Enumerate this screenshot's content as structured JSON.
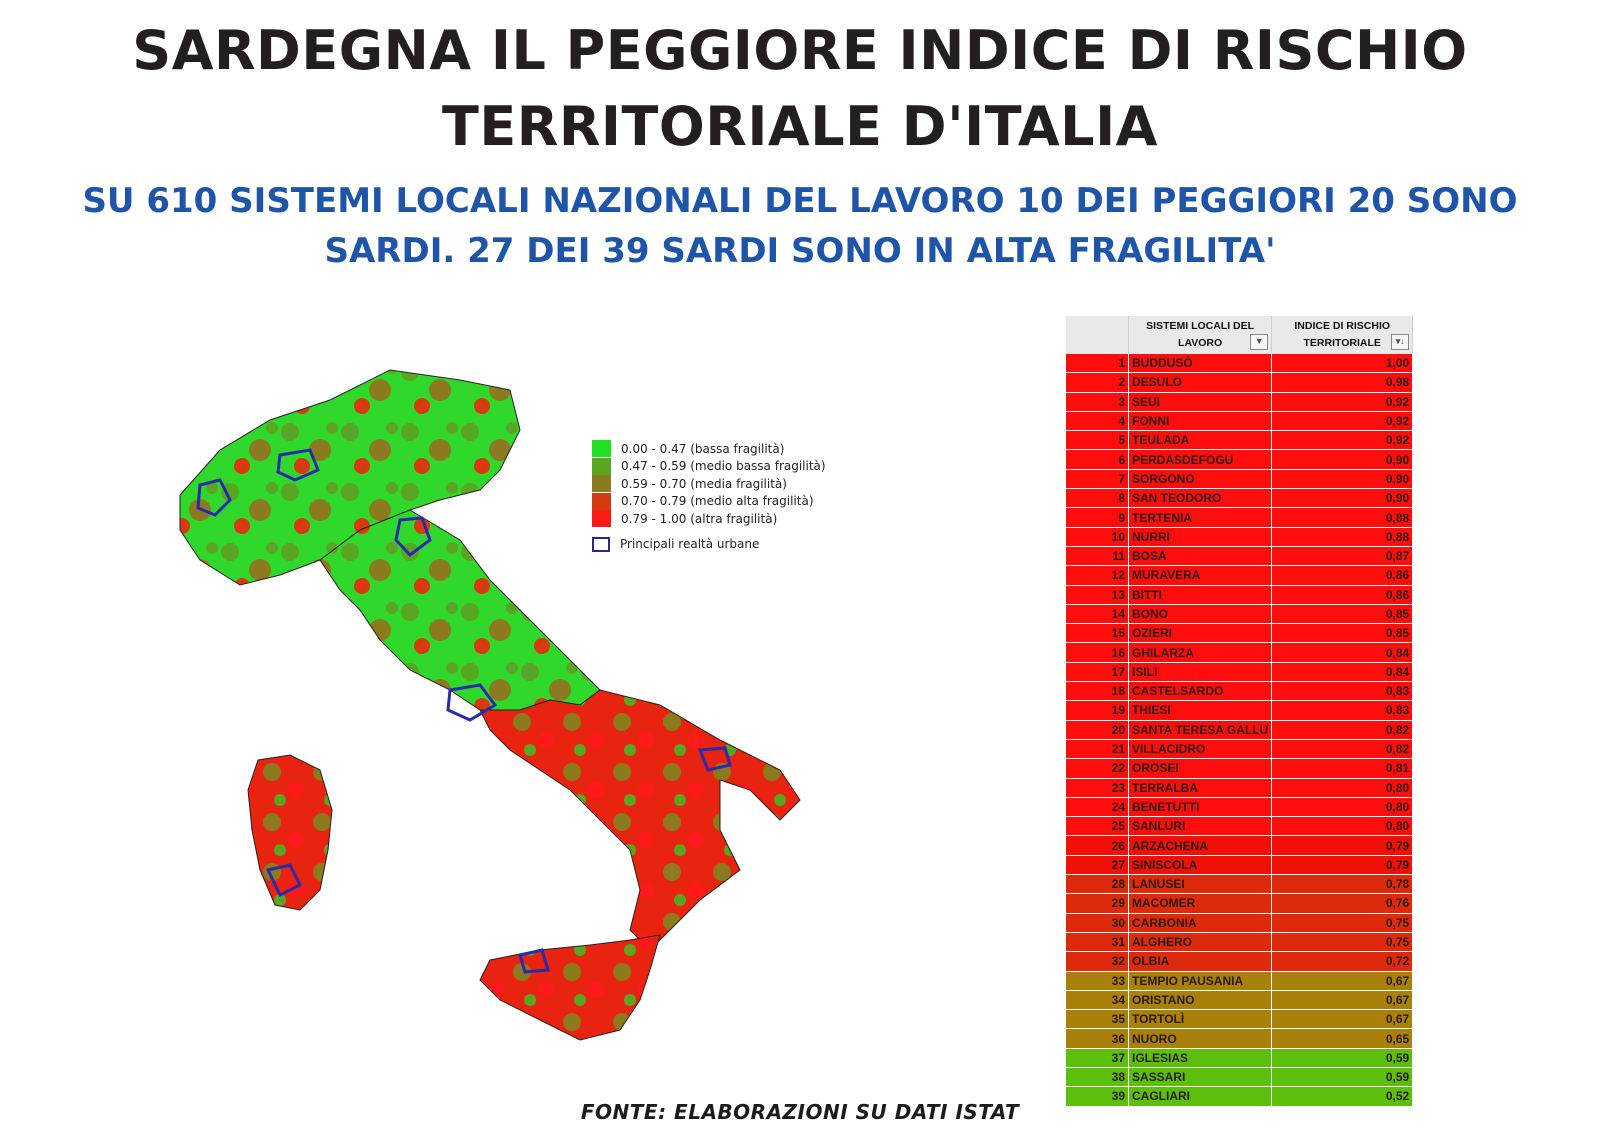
{
  "title_line1": "SARDEGNA IL PEGGIORE INDICE DI RISCHIO",
  "title_line2": "TERRITORIALE D'ITALIA",
  "subtitle_line1": "SU 610 SISTEMI LOCALI NAZIONALI DEL LAVORO 10 DEI PEGGIORI 20 SONO",
  "subtitle_line2": "SARDI. 27 DEI 39 SARDI SONO IN ALTA FRAGILITA'",
  "legend": {
    "items": [
      {
        "label": "0.00 - 0.47 (bassa fragilità)",
        "color": "#22e022"
      },
      {
        "label": "0.47 - 0.59 (medio bassa fragilità)",
        "color": "#5aa521"
      },
      {
        "label": "0.59 - 0.70 (media fragilità)",
        "color": "#8b7a1e"
      },
      {
        "label": "0.70 - 0.79 (medio alta fragilità)",
        "color": "#d83a10"
      },
      {
        "label": "0.79 - 1.00 (altra fragilità)",
        "color": "#ff1a1a"
      }
    ],
    "urban_label": "Principali realtà urbane"
  },
  "table": {
    "header_name_l1": "SISTEMI LOCALI DEL",
    "header_name_l2": "LAVORO",
    "header_val_l1": "INDICE DI RISCHIO",
    "header_val_l2": "TERRITORIALE",
    "rows": [
      {
        "n": "1",
        "name": "BUDDUSÒ",
        "v": "1,00",
        "color": "#ff0d0d"
      },
      {
        "n": "2",
        "name": "DESULO",
        "v": "0,98",
        "color": "#ff0d0d"
      },
      {
        "n": "3",
        "name": "SEUI",
        "v": "0,92",
        "color": "#ff0d0d"
      },
      {
        "n": "4",
        "name": "FONNI",
        "v": "0,92",
        "color": "#ff0d0d"
      },
      {
        "n": "5",
        "name": "TEULADA",
        "v": "0,92",
        "color": "#ff0d0d"
      },
      {
        "n": "6",
        "name": "PERDASDEFOGU",
        "v": "0,90",
        "color": "#ff0d0d"
      },
      {
        "n": "7",
        "name": "SORGONO",
        "v": "0,90",
        "color": "#ff0d0d"
      },
      {
        "n": "8",
        "name": "SAN TEODORO",
        "v": "0,90",
        "color": "#ff0d0d"
      },
      {
        "n": "9",
        "name": "TERTENIA",
        "v": "0,88",
        "color": "#ff0d0d"
      },
      {
        "n": "10",
        "name": "NURRI",
        "v": "0,88",
        "color": "#ff0d0d"
      },
      {
        "n": "11",
        "name": "BOSA",
        "v": "0,87",
        "color": "#ff0d0d"
      },
      {
        "n": "12",
        "name": "MURAVERA",
        "v": "0,86",
        "color": "#ff0d0d"
      },
      {
        "n": "13",
        "name": "BITTI",
        "v": "0,86",
        "color": "#ff0d0d"
      },
      {
        "n": "14",
        "name": "BONO",
        "v": "0,85",
        "color": "#ff0d0d"
      },
      {
        "n": "15",
        "name": "OZIERI",
        "v": "0,85",
        "color": "#ff0d0d"
      },
      {
        "n": "16",
        "name": "GHILARZA",
        "v": "0,84",
        "color": "#ff0d0d"
      },
      {
        "n": "17",
        "name": "ISILI",
        "v": "0,84",
        "color": "#ff0d0d"
      },
      {
        "n": "18",
        "name": "CASTELSARDO",
        "v": "0,83",
        "color": "#ff0d0d"
      },
      {
        "n": "19",
        "name": "THIESI",
        "v": "0,83",
        "color": "#ff0d0d"
      },
      {
        "n": "20",
        "name": "SANTA TERESA GALLU",
        "v": "0,82",
        "color": "#ff0d0d"
      },
      {
        "n": "21",
        "name": "VILLACIDRO",
        "v": "0,82",
        "color": "#ff0d0d"
      },
      {
        "n": "22",
        "name": "OROSEI",
        "v": "0,81",
        "color": "#ff0d0d"
      },
      {
        "n": "23",
        "name": "TERRALBA",
        "v": "0,80",
        "color": "#ff0d0d"
      },
      {
        "n": "24",
        "name": "BENETUTTI",
        "v": "0,80",
        "color": "#ff0d0d"
      },
      {
        "n": "25",
        "name": "SANLURI",
        "v": "0,80",
        "color": "#ff0d0d"
      },
      {
        "n": "26",
        "name": "ARZACHENA",
        "v": "0,79",
        "color": "#f01008"
      },
      {
        "n": "27",
        "name": "SINISCOLA",
        "v": "0,79",
        "color": "#f01008"
      },
      {
        "n": "28",
        "name": "LANUSEI",
        "v": "0,78",
        "color": "#dd2a0c"
      },
      {
        "n": "29",
        "name": "MACOMER",
        "v": "0,76",
        "color": "#dd2a0c"
      },
      {
        "n": "30",
        "name": "CARBONIA",
        "v": "0,75",
        "color": "#dd2a0c"
      },
      {
        "n": "31",
        "name": "ALGHERO",
        "v": "0,75",
        "color": "#dd2a0c"
      },
      {
        "n": "32",
        "name": "OLBIA",
        "v": "0,72",
        "color": "#dd2a0c"
      },
      {
        "n": "33",
        "name": "TEMPIO PAUSANIA",
        "v": "0,67",
        "color": "#a8800a"
      },
      {
        "n": "34",
        "name": "ORISTANO",
        "v": "0,67",
        "color": "#a8800a"
      },
      {
        "n": "35",
        "name": "TORTOLÌ",
        "v": "0,67",
        "color": "#a8800a"
      },
      {
        "n": "36",
        "name": "NUORO",
        "v": "0,65",
        "color": "#a8800a"
      },
      {
        "n": "37",
        "name": "IGLESIAS",
        "v": "0,59",
        "color": "#5cbf0c"
      },
      {
        "n": "38",
        "name": "SASSARI",
        "v": "0,59",
        "color": "#5cbf0c"
      },
      {
        "n": "39",
        "name": "CAGLIARI",
        "v": "0,52",
        "color": "#5cbf0c"
      }
    ]
  },
  "source": "FONTE: ELABORAZIONI SU DATI ISTAT"
}
